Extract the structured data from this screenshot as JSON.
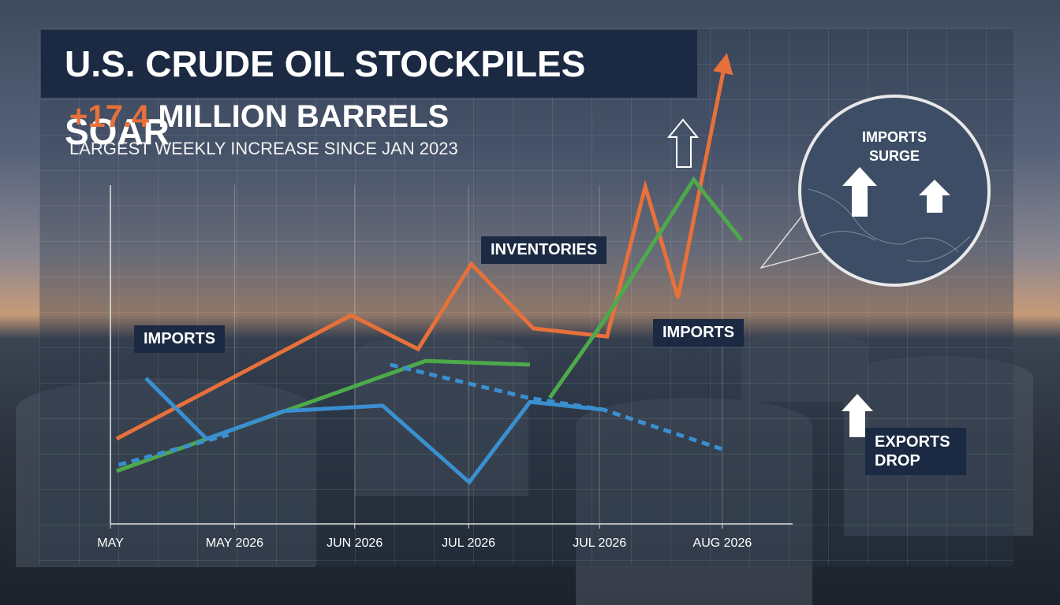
{
  "chart_data": {
    "type": "line",
    "title": "U.S. CRUDE OIL STOCKPILES SOAR",
    "highlight": "+17.4",
    "subtitle": "MILLION BARRELS",
    "note": "LARGEST WEEKLY INCREASE SINCE JAN 2023",
    "annotations": {
      "inventories": "INVENTORIES",
      "imports_left": "IMPORTS",
      "imports_right": "IMPORTS",
      "exports": "EXPORTS DROP",
      "inset": "IMPORTS SURGE"
    },
    "xlim": [
      0,
      100
    ],
    "ylim": [
      0,
      140
    ],
    "xticks": [
      {
        "value": 0,
        "label": "MAY"
      },
      {
        "value": 18.2,
        "label": "MAY 2026"
      },
      {
        "value": 35.8,
        "label": "JUN 2026"
      },
      {
        "value": 52.5,
        "label": "JUL 2026"
      },
      {
        "value": 71.7,
        "label": "JUL 2026"
      },
      {
        "value": 89.7,
        "label": "AUG 2026"
      }
    ],
    "grid": true,
    "series": [
      {
        "color": "#e8703a",
        "dashed": false,
        "arrow": true,
        "x": [
          0.9,
          35.3,
          45.1,
          52.9,
          62.0,
          72.8,
          78.4,
          83.2,
          90.2
        ],
        "values": [
          25.1,
          61.6,
          51.6,
          76.7,
          57.7,
          55.3,
          99.5,
          66.7,
          137.2
        ]
      },
      {
        "color": "#4caa4a",
        "dashed": false,
        "arrow": false,
        "x": [
          0.9,
          46.2,
          61.5,
          63.0,
          64.4,
          72.3,
          85.5,
          92.5
        ],
        "values": [
          15.6,
          48.1,
          47.0,
          null,
          37.2,
          59.8,
          101.6,
          83.7
        ]
      },
      {
        "color": "#3a8fd0",
        "dashed": false,
        "arrow": false,
        "x": [
          5.2,
          14.1,
          25.4,
          39.9,
          52.6,
          61.5,
          72.3
        ],
        "values": [
          43.0,
          25.1,
          33.3,
          34.9,
          12.3,
          36.0,
          33.7
        ]
      },
      {
        "color": "#3a8fd0",
        "dashed": true,
        "arrow": false,
        "x": [
          1.2,
          17.3,
          30.0,
          41.0,
          61.3,
          72.3,
          89.6
        ],
        "values": [
          17.4,
          26.3,
          null,
          47.0,
          37.2,
          33.7,
          22.1
        ]
      }
    ]
  }
}
